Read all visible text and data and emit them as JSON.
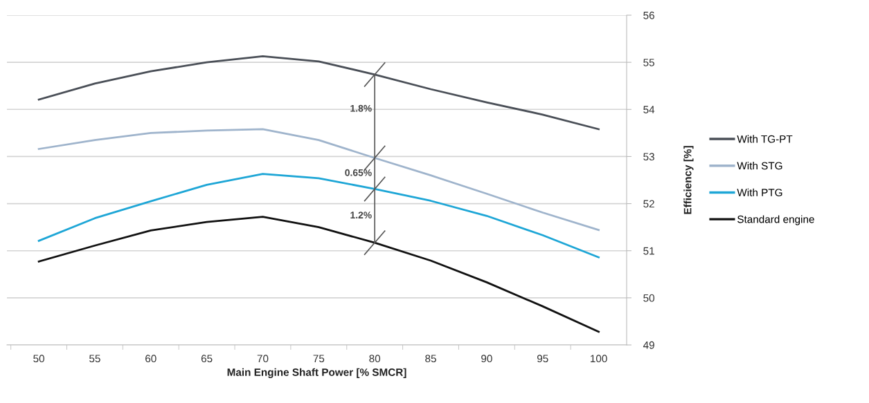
{
  "chart_data": {
    "type": "line",
    "xlabel": "Main Engine Shaft Power [% SMCR]",
    "ylabel": "Efficiency [%]",
    "categories": [
      "50",
      "55",
      "60",
      "65",
      "70",
      "75",
      "80",
      "85",
      "90",
      "95",
      "100"
    ],
    "series": [
      {
        "name": "With TG-PT",
        "color": "#4a4f57",
        "values": [
          54.21,
          54.55,
          54.81,
          55.0,
          55.13,
          55.02,
          54.74,
          54.43,
          54.15,
          53.89,
          53.58
        ]
      },
      {
        "name": "With STG",
        "color": "#9fb4cc",
        "values": [
          53.16,
          53.35,
          53.5,
          53.55,
          53.58,
          53.35,
          52.97,
          52.6,
          52.21,
          51.81,
          51.44
        ]
      },
      {
        "name": "With PTG",
        "color": "#1ea6d6",
        "values": [
          51.21,
          51.69,
          52.05,
          52.4,
          52.63,
          52.54,
          52.31,
          52.06,
          51.74,
          51.33,
          50.86
        ]
      },
      {
        "name": "Standard engine",
        "color": "#111111",
        "values": [
          50.77,
          51.11,
          51.43,
          51.61,
          51.72,
          51.5,
          51.17,
          50.79,
          50.33,
          49.82,
          49.28
        ]
      }
    ],
    "ylim": [
      49,
      56
    ],
    "yticks": [
      49,
      50,
      51,
      52,
      53,
      54,
      55,
      56
    ],
    "grid": "y",
    "legend": "right",
    "marker": "none",
    "line_style": "solid",
    "annotations": [
      "1.8%",
      "0.65%",
      "1.2%"
    ]
  }
}
